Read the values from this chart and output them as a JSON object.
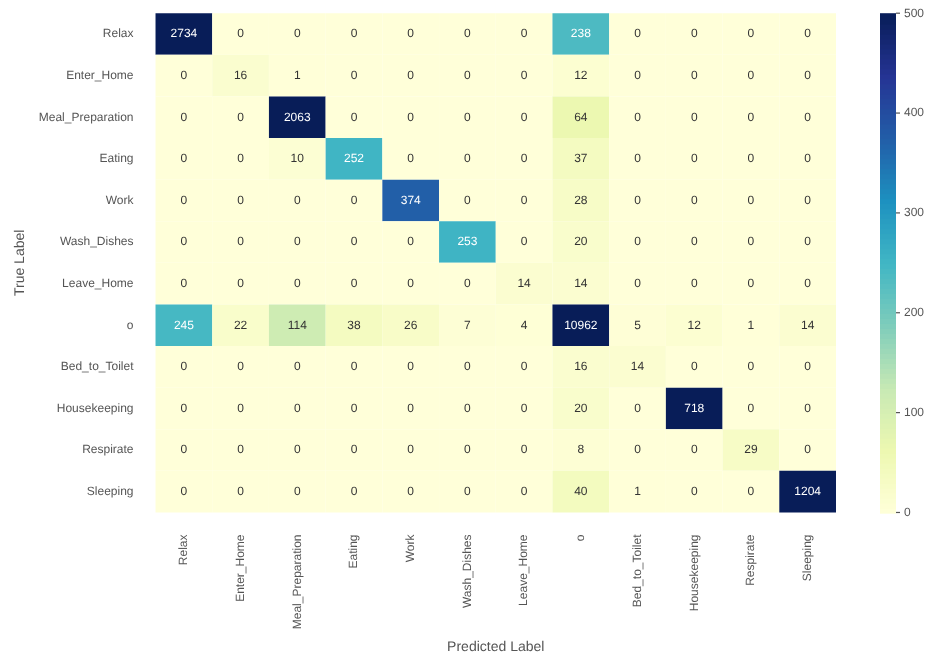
{
  "chart_data": {
    "type": "heatmap",
    "xlabel": "Predicted Label",
    "ylabel": "True Label",
    "categories": [
      "Relax",
      "Enter_Home",
      "Meal_Preparation",
      "Eating",
      "Work",
      "Wash_Dishes",
      "Leave_Home",
      "o",
      "Bed_to_Toilet",
      "Housekeeping",
      "Respirate",
      "Sleeping"
    ],
    "y_categories": [
      "Relax",
      "Enter_Home",
      "Meal_Preparation",
      "Eating",
      "Work",
      "Wash_Dishes",
      "Leave_Home",
      "o",
      "Bed_to_Toilet",
      "Housekeeping",
      "Respirate",
      "Sleeping"
    ],
    "cells": [
      [
        2734,
        0,
        0,
        0,
        0,
        0,
        0,
        238,
        0,
        0,
        0,
        0
      ],
      [
        0,
        16,
        1,
        0,
        0,
        0,
        0,
        12,
        0,
        0,
        0,
        0
      ],
      [
        0,
        0,
        2063,
        0,
        0,
        0,
        0,
        64,
        0,
        0,
        0,
        0
      ],
      [
        0,
        0,
        10,
        252,
        0,
        0,
        0,
        37,
        0,
        0,
        0,
        0
      ],
      [
        0,
        0,
        0,
        0,
        374,
        0,
        0,
        28,
        0,
        0,
        0,
        0
      ],
      [
        0,
        0,
        0,
        0,
        0,
        253,
        0,
        20,
        0,
        0,
        0,
        0
      ],
      [
        0,
        0,
        0,
        0,
        0,
        0,
        14,
        14,
        0,
        0,
        0,
        0
      ],
      [
        245,
        22,
        114,
        38,
        26,
        7,
        4,
        10962,
        5,
        12,
        1,
        14
      ],
      [
        0,
        0,
        0,
        0,
        0,
        0,
        0,
        16,
        14,
        0,
        0,
        0
      ],
      [
        0,
        0,
        0,
        0,
        0,
        0,
        0,
        20,
        0,
        718,
        0,
        0
      ],
      [
        0,
        0,
        0,
        0,
        0,
        0,
        0,
        8,
        0,
        0,
        29,
        0
      ],
      [
        0,
        0,
        0,
        0,
        0,
        0,
        0,
        40,
        1,
        0,
        0,
        1204
      ]
    ],
    "clim": [
      0,
      500
    ],
    "cticks": [
      0,
      100,
      200,
      300,
      400,
      500
    ],
    "data_labels": true
  }
}
